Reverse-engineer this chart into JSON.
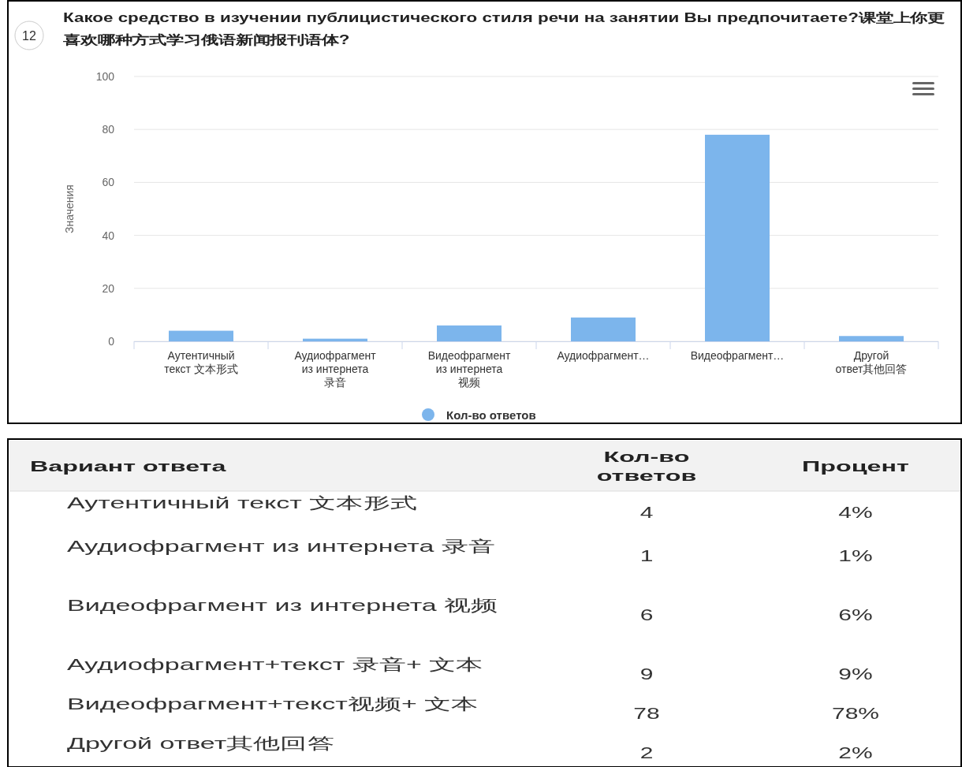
{
  "chart_data": [
    {
      "type": "bar",
      "title": "Какое средство в изучении публицистического стиля речи на занятии Вы предпочитаете?课堂上你更喜欢哪种方式学习俄语新闻报刊语体?",
      "subtitle": "12",
      "ylabel": "Значения",
      "categories": [
        "Аутентичный\nтекст 文本形式",
        "Аудиофрагмент\nиз интернета\n录音",
        "Видеофрагмент\nиз интернета\n视频",
        "Аудиофрагмент…",
        "Видеофрагмент…",
        "Другой\nответ其他回答"
      ],
      "series": [
        {
          "name": "Кол-во ответов",
          "color": "#7cb5ec",
          "values": [
            4,
            1,
            6,
            9,
            78,
            2
          ]
        }
      ],
      "ylim": [
        0,
        100
      ],
      "yticks": [
        0,
        20,
        40,
        60,
        80,
        100
      ],
      "grid": "y",
      "legend": "bottom"
    },
    {
      "type": "other",
      "annotations": [
        "Вариант ответа",
        "Кол-во\nответов",
        "Процент",
        "Аутентичный текст 文本形式",
        "4",
        "4%",
        "Аудиофрагмент из интернета 录音",
        "1",
        "1%",
        "Видеофрагмент из интернета 视频",
        "6",
        "6%",
        "Аудиофрагмент+текст 录音+ 文本",
        "9",
        "9%",
        "Видеофрагмент+текст视频+ 文本",
        "78",
        "78%",
        "Другой ответ其他回答",
        "2",
        "2%"
      ]
    }
  ]
}
